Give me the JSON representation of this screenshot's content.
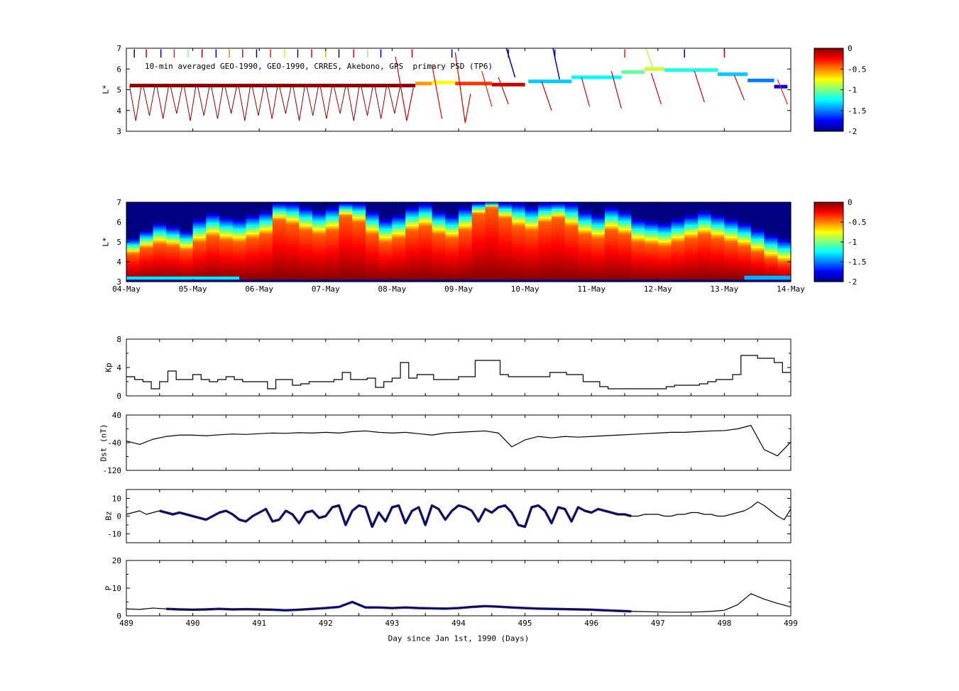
{
  "figure": {
    "background": "#ffffff",
    "line_color": "#000000",
    "overlay_color": "#2323b0",
    "xlabel": "Day since Jan 1st, 1990 (Days)"
  },
  "chart_data": [
    {
      "id": "psd_scatter",
      "type": "scatter",
      "title": "10-min averaged GEO-1990, GEO-1990, CRRES, Akebono, GPS  primary PSD (TP6)",
      "ylabel": "L*",
      "ylim": [
        3,
        7
      ],
      "yticks": [
        3,
        4,
        5,
        6,
        7
      ],
      "xlim": [
        489,
        499
      ],
      "clim": [
        -2,
        0
      ],
      "colorbar_ticks": [
        "0",
        "-0.5",
        "-1",
        "-1.5",
        "-2"
      ],
      "dip_train": {
        "x0": 489.05,
        "x1": 493.05,
        "period": 0.205,
        "l_top": 5.15,
        "l_bottom": 3.5,
        "value": -0.05
      },
      "band_segments": [
        {
          "x0": 489.05,
          "x1": 493.35,
          "l": 5.2,
          "v": -0.03,
          "w": 5
        },
        {
          "x0": 493.35,
          "x1": 493.6,
          "l": 5.3,
          "v": -0.55,
          "w": 5
        },
        {
          "x0": 493.6,
          "x1": 493.95,
          "l": 5.35,
          "v": -0.75,
          "w": 5
        },
        {
          "x0": 493.95,
          "x1": 494.5,
          "l": 5.3,
          "v": -0.35,
          "w": 5
        },
        {
          "x0": 494.5,
          "x1": 495.0,
          "l": 5.25,
          "v": -0.15,
          "w": 5
        },
        {
          "x0": 495.05,
          "x1": 495.7,
          "l": 5.4,
          "v": -1.35,
          "w": 5
        },
        {
          "x0": 495.7,
          "x1": 496.45,
          "l": 5.6,
          "v": -1.25,
          "w": 5
        },
        {
          "x0": 496.45,
          "x1": 496.8,
          "l": 5.85,
          "v": -1.05,
          "w": 5
        },
        {
          "x0": 496.8,
          "x1": 497.1,
          "l": 6.0,
          "v": -0.85,
          "w": 5
        },
        {
          "x0": 497.1,
          "x1": 497.9,
          "l": 5.95,
          "v": -1.2,
          "w": 5
        },
        {
          "x0": 497.9,
          "x1": 498.35,
          "l": 5.75,
          "v": -1.35,
          "w": 5
        },
        {
          "x0": 498.35,
          "x1": 498.75,
          "l": 5.45,
          "v": -1.5,
          "w": 5
        },
        {
          "x0": 498.75,
          "x1": 498.95,
          "l": 5.15,
          "v": -1.8,
          "w": 5
        }
      ],
      "streaks": [
        {
          "x0": 493.05,
          "l0": 6.6,
          "x1": 493.22,
          "l1": 3.5,
          "v": -0.15,
          "w": 1.2
        },
        {
          "x0": 493.22,
          "l0": 3.5,
          "x1": 493.32,
          "l1": 5.1,
          "v": -0.15,
          "w": 1.2
        },
        {
          "x0": 493.6,
          "l0": 6.2,
          "x1": 493.75,
          "l1": 3.6,
          "v": -0.2,
          "w": 1.2
        },
        {
          "x0": 493.95,
          "l0": 6.8,
          "x1": 494.1,
          "l1": 3.4,
          "v": -0.15,
          "w": 1.2
        },
        {
          "x0": 494.1,
          "l0": 3.4,
          "x1": 494.18,
          "l1": 4.8,
          "v": -0.2,
          "w": 1.2
        },
        {
          "x0": 494.35,
          "l0": 5.9,
          "x1": 494.5,
          "l1": 4.2,
          "v": -0.3,
          "w": 1.2
        },
        {
          "x0": 494.6,
          "l0": 5.6,
          "x1": 494.75,
          "l1": 4.3,
          "v": -0.2,
          "w": 1.2
        },
        {
          "x0": 494.72,
          "l0": 7.0,
          "x1": 494.85,
          "l1": 5.6,
          "v": -1.9,
          "w": 1.5
        },
        {
          "x0": 495.25,
          "l0": 5.4,
          "x1": 495.4,
          "l1": 4.0,
          "v": -0.15,
          "w": 1.2
        },
        {
          "x0": 495.42,
          "l0": 7.0,
          "x1": 495.52,
          "l1": 5.5,
          "v": -1.85,
          "w": 1.5
        },
        {
          "x0": 495.85,
          "l0": 5.6,
          "x1": 495.97,
          "l1": 4.2,
          "v": -0.2,
          "w": 1.2
        },
        {
          "x0": 496.3,
          "l0": 5.9,
          "x1": 496.45,
          "l1": 4.1,
          "v": -0.15,
          "w": 1.2
        },
        {
          "x0": 496.82,
          "l0": 7.0,
          "x1": 496.92,
          "l1": 6.1,
          "v": -0.9,
          "w": 1.5
        },
        {
          "x0": 496.9,
          "l0": 5.8,
          "x1": 497.05,
          "l1": 4.3,
          "v": -0.2,
          "w": 1.2
        },
        {
          "x0": 497.55,
          "l0": 5.9,
          "x1": 497.7,
          "l1": 4.4,
          "v": -0.15,
          "w": 1.2
        },
        {
          "x0": 498.15,
          "l0": 5.7,
          "x1": 498.3,
          "l1": 4.5,
          "v": -0.2,
          "w": 1.2
        },
        {
          "x0": 498.8,
          "l0": 5.5,
          "x1": 498.95,
          "l1": 4.3,
          "v": -0.3,
          "w": 1.2
        }
      ],
      "top_ticks": [
        {
          "x": 489.12,
          "v": -1.9
        },
        {
          "x": 489.3,
          "v": -0.15
        },
        {
          "x": 489.52,
          "v": -1.8
        },
        {
          "x": 489.72,
          "v": -0.3
        },
        {
          "x": 489.93,
          "v": -1.0
        },
        {
          "x": 490.14,
          "v": -0.1
        },
        {
          "x": 490.35,
          "v": -1.85
        },
        {
          "x": 490.55,
          "v": -0.5
        },
        {
          "x": 490.75,
          "v": -0.2
        },
        {
          "x": 490.96,
          "v": -1.9
        },
        {
          "x": 491.17,
          "v": -0.3
        },
        {
          "x": 491.38,
          "v": -0.9
        },
        {
          "x": 491.58,
          "v": -1.8
        },
        {
          "x": 491.79,
          "v": -0.15
        },
        {
          "x": 492.0,
          "v": -0.6
        },
        {
          "x": 492.2,
          "v": -1.9
        },
        {
          "x": 492.42,
          "v": -0.25
        },
        {
          "x": 492.63,
          "v": -1.0
        },
        {
          "x": 492.83,
          "v": -1.8
        },
        {
          "x": 493.3,
          "v": -0.2
        },
        {
          "x": 493.9,
          "v": -1.85
        },
        {
          "x": 494.75,
          "v": -1.9
        },
        {
          "x": 495.45,
          "v": -1.85
        },
        {
          "x": 496.5,
          "v": -0.3
        },
        {
          "x": 497.4,
          "v": -1.9
        },
        {
          "x": 498.0,
          "v": -0.2
        }
      ]
    },
    {
      "id": "psd_map",
      "type": "heatmap",
      "ylabel": "L*",
      "ylim": [
        3,
        7
      ],
      "yticks": [
        3,
        4,
        5,
        6,
        7
      ],
      "xlim": [
        489,
        499
      ],
      "clim": [
        -2,
        0
      ],
      "colorbar_ticks": [
        "0",
        "-0.5",
        "-1",
        "-1.5",
        "-2"
      ],
      "x0": 489,
      "dx": 0.2,
      "red_top": [
        4.4,
        4.7,
        4.9,
        4.8,
        4.6,
        5.0,
        5.3,
        5.1,
        5.0,
        5.2,
        5.4,
        6.1,
        5.9,
        5.6,
        5.4,
        5.6,
        6.3,
        6.0,
        5.4,
        5.0,
        5.2,
        5.6,
        5.8,
        5.4,
        5.2,
        5.6,
        6.4,
        6.7,
        6.2,
        5.8,
        5.6,
        6.0,
        6.2,
        5.8,
        5.4,
        5.2,
        5.6,
        5.4,
        5.0,
        4.9,
        4.8,
        5.0,
        5.2,
        5.4,
        5.2,
        5.0,
        4.8,
        4.5,
        4.2,
        4.0
      ],
      "blue_top": [
        5.2,
        5.6,
        6.0,
        5.8,
        5.6,
        6.2,
        6.5,
        6.3,
        6.2,
        6.4,
        6.6,
        7.0,
        7.0,
        6.8,
        6.6,
        6.8,
        7.0,
        7.0,
        6.6,
        6.2,
        6.4,
        6.8,
        7.0,
        6.6,
        6.4,
        6.8,
        7.0,
        7.0,
        7.0,
        7.0,
        6.8,
        7.0,
        7.0,
        7.0,
        6.6,
        6.4,
        6.8,
        6.6,
        6.2,
        6.1,
        6.0,
        6.2,
        6.4,
        6.6,
        6.4,
        6.2,
        6.0,
        5.7,
        5.4,
        5.2
      ],
      "stripes": [
        {
          "x0": 489,
          "x1": 499,
          "l0": 3.0,
          "l1": 3.1,
          "v": -1.95
        },
        {
          "x0": 489,
          "x1": 490.7,
          "l0": 3.1,
          "l1": 3.26,
          "v": -1.3
        },
        {
          "x0": 498.3,
          "x1": 499,
          "l0": 3.1,
          "l1": 3.3,
          "v": -1.4
        }
      ],
      "xtick_labels": [
        "04-May",
        "05-May",
        "06-May",
        "07-May",
        "08-May",
        "09-May",
        "10-May",
        "11-May",
        "12-May",
        "13-May",
        "14-May"
      ]
    },
    {
      "id": "kp",
      "type": "line",
      "ylabel": "Kp",
      "ylim": [
        0,
        8
      ],
      "yticks": [
        0,
        4,
        8
      ],
      "yticks_minor": [
        2,
        6
      ],
      "x0": 489,
      "dx": 0.125,
      "step": true,
      "values": [
        2.7,
        2.3,
        2.0,
        1.0,
        2.0,
        3.5,
        2.3,
        2.3,
        3.0,
        2.3,
        2.0,
        2.3,
        2.7,
        2.3,
        2.0,
        2.0,
        2.0,
        1.0,
        2.3,
        2.3,
        1.5,
        1.7,
        2.0,
        2.0,
        2.0,
        2.3,
        3.3,
        2.3,
        2.3,
        2.5,
        1.2,
        2.0,
        2.5,
        4.7,
        2.5,
        3.0,
        3.0,
        2.3,
        2.3,
        2.3,
        2.7,
        2.7,
        5.0,
        5.0,
        5.0,
        3.0,
        2.7,
        2.7,
        2.7,
        2.7,
        2.7,
        3.3,
        3.3,
        3.0,
        3.0,
        2.0,
        2.0,
        1.3,
        1.0,
        1.0,
        1.0,
        1.0,
        1.0,
        1.0,
        1.0,
        1.3,
        1.5,
        1.5,
        1.5,
        1.7,
        2.0,
        2.3,
        2.3,
        3.0,
        5.7,
        5.7,
        5.3,
        5.3,
        4.7,
        3.3
      ]
    },
    {
      "id": "dst",
      "type": "line",
      "ylabel": "Dst (nT)",
      "ylim": [
        -120,
        40
      ],
      "yticks": [
        40,
        -40,
        -120
      ],
      "yticks_minor": [
        0,
        -80
      ],
      "x0": 489,
      "dx": 0.2,
      "values": [
        -35,
        -45,
        -30,
        -22,
        -18,
        -18,
        -20,
        -17,
        -15,
        -16,
        -14,
        -12,
        -13,
        -11,
        -12,
        -10,
        -12,
        -8,
        -6,
        -10,
        -12,
        -10,
        -14,
        -18,
        -12,
        -10,
        -8,
        -6,
        -12,
        -52,
        -32,
        -22,
        -26,
        -22,
        -24,
        -22,
        -20,
        -18,
        -16,
        -14,
        -12,
        -10,
        -10,
        -8,
        -6,
        -5,
        0,
        10,
        -60,
        -78,
        -38
      ]
    },
    {
      "id": "bz",
      "type": "line",
      "ylabel": "Bz",
      "ylim": [
        -15,
        15
      ],
      "yticks": [
        10,
        0,
        -10
      ],
      "yticks_minor": [
        5,
        -5
      ],
      "x0": 489,
      "dx": 0.1,
      "overlay": {
        "x0": 489.45,
        "x1": 496.6
      },
      "values": [
        1,
        2,
        3,
        1,
        2,
        3,
        2,
        1,
        2,
        1,
        0,
        -1,
        -2,
        0,
        2,
        3,
        1,
        -2,
        -3,
        0,
        2,
        4,
        -3,
        -2,
        3,
        1,
        -4,
        2,
        3,
        -1,
        0,
        5,
        6,
        -5,
        3,
        6,
        5,
        -6,
        2,
        -3,
        5,
        6,
        -4,
        3,
        5,
        -5,
        6,
        4,
        -2,
        3,
        6,
        5,
        3,
        -3,
        4,
        2,
        5,
        6,
        2,
        -5,
        -6,
        5,
        6,
        3,
        -4,
        5,
        4,
        -3,
        5,
        3,
        2,
        4,
        3,
        2,
        1,
        1,
        0,
        0,
        1,
        1,
        1,
        0,
        0,
        1,
        1,
        2,
        2,
        1,
        1,
        0,
        0,
        1,
        2,
        3,
        5,
        8,
        6,
        3,
        0,
        -2,
        4
      ]
    },
    {
      "id": "p",
      "type": "line",
      "ylabel": "P",
      "ylim": [
        0,
        20
      ],
      "yticks": [
        0,
        10,
        20
      ],
      "yticks_minor": [
        5,
        15
      ],
      "x0": 489,
      "dx": 0.2,
      "overlay": {
        "x0": 489.5,
        "x1": 496.6
      },
      "xticks": [
        489,
        490,
        491,
        492,
        493,
        494,
        495,
        496,
        497,
        498,
        499
      ],
      "xlabel": "Day since Jan 1st, 1990 (Days)",
      "values": [
        2.5,
        2.3,
        2.8,
        2.5,
        2.3,
        2.2,
        2.3,
        2.5,
        2.3,
        2.4,
        2.3,
        2.2,
        2.0,
        2.2,
        2.5,
        2.8,
        3.2,
        5.0,
        3.0,
        3.0,
        2.8,
        3.0,
        2.8,
        2.7,
        2.6,
        2.8,
        3.2,
        3.5,
        3.3,
        3.0,
        2.8,
        2.6,
        2.5,
        2.4,
        2.3,
        2.2,
        2.0,
        1.8,
        1.6,
        1.5,
        1.4,
        1.3,
        1.3,
        1.4,
        1.6,
        2.0,
        4.0,
        8.0,
        6.0,
        4.5,
        3.2
      ]
    }
  ]
}
